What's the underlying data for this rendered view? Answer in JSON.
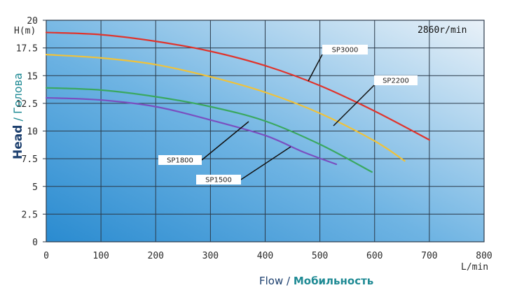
{
  "chart_data": {
    "type": "line",
    "title": "",
    "speed_label": "2860r/min",
    "xlabel": {
      "en": "Flow",
      "sep": " / ",
      "ru": "Мобильность"
    },
    "ylabel": {
      "en": "Head",
      "sep": " / ",
      "ru": "Голова"
    },
    "x_unit": "L/min",
    "y_unit": "H(m)",
    "xlim": [
      0,
      800
    ],
    "ylim": [
      0,
      20
    ],
    "x_ticks": [
      "0",
      "100",
      "200",
      "300",
      "400",
      "500",
      "600",
      "700",
      "800"
    ],
    "y_ticks": [
      "0",
      "2.5",
      "5",
      "7.5",
      "10",
      "12.5",
      "15",
      "17.5",
      "20"
    ],
    "grid": true,
    "background": {
      "top_right": "#e9f1f8",
      "bottom_left": "#2a8bd0"
    },
    "series": [
      {
        "name": "SP3000",
        "color": "#e0342c",
        "x": [
          0,
          100,
          200,
          300,
          400,
          500,
          600,
          700
        ],
        "y": [
          18.9,
          18.7,
          18.1,
          17.2,
          15.9,
          14.1,
          11.8,
          9.2
        ]
      },
      {
        "name": "SP2200",
        "color": "#f0c23a",
        "x": [
          0,
          100,
          200,
          300,
          400,
          500,
          600,
          655
        ],
        "y": [
          16.9,
          16.6,
          16.0,
          14.9,
          13.5,
          11.6,
          9.1,
          7.3
        ]
      },
      {
        "name": "SP1800",
        "color": "#3aa860",
        "x": [
          0,
          100,
          200,
          300,
          400,
          500,
          595
        ],
        "y": [
          13.9,
          13.7,
          13.1,
          12.2,
          10.9,
          8.8,
          6.3
        ]
      },
      {
        "name": "SP1500",
        "color": "#7a4fc0",
        "x": [
          0,
          100,
          200,
          300,
          400,
          470,
          530
        ],
        "y": [
          13.0,
          12.8,
          12.2,
          11.0,
          9.6,
          8.1,
          7.0
        ]
      }
    ]
  }
}
